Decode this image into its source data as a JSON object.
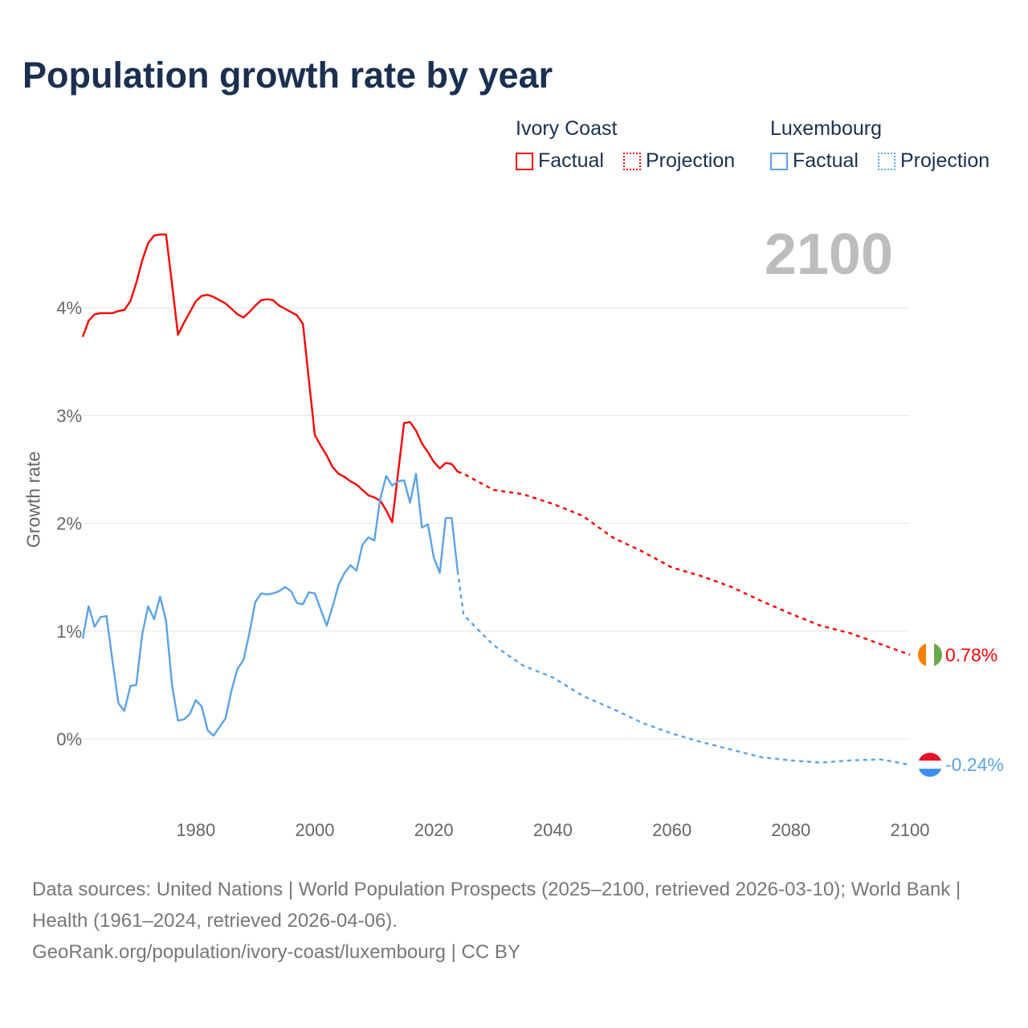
{
  "title": "Population growth rate by year",
  "legend": {
    "groups": [
      {
        "name": "Ivory Coast",
        "color": "#ff0000",
        "factual": "Factual",
        "projection": "Projection"
      },
      {
        "name": "Luxembourg",
        "color": "#5aa3e8",
        "factual": "Factual",
        "projection": "Projection"
      }
    ]
  },
  "current_year": "2100",
  "end_labels": {
    "ivory_coast": "0.78%",
    "luxembourg": "-0.24%"
  },
  "footer": {
    "line1": "Data sources: United Nations | World Population Prospects (2025–2100, retrieved 2026-03-10); World Bank | Health (1961–2024, retrieved 2026-04-06).",
    "line2": "GeoRank.org/population/ivory-coast/luxembourg | CC BY"
  },
  "chart_data": {
    "type": "line",
    "title": "Population growth rate by year",
    "xlabel": "",
    "ylabel": "Growth rate",
    "xlim": [
      1961,
      2100
    ],
    "ylim": [
      -0.6,
      4.9
    ],
    "x_ticks": [
      1980,
      2000,
      2020,
      2040,
      2060,
      2080,
      2100
    ],
    "y_ticks": [
      {
        "v": 0,
        "label": "0%"
      },
      {
        "v": 1,
        "label": "1%"
      },
      {
        "v": 2,
        "label": "2%"
      },
      {
        "v": 3,
        "label": "3%"
      },
      {
        "v": 4,
        "label": "4%"
      }
    ],
    "grid": true,
    "legend_position": "top-right",
    "series": [
      {
        "name": "Ivory Coast",
        "kind": "Factual",
        "color": "#ff0000",
        "dashed": false,
        "start_year": 1961,
        "values": [
          3.73,
          3.88,
          3.94,
          3.95,
          3.95,
          3.95,
          3.97,
          3.98,
          4.06,
          4.23,
          4.44,
          4.6,
          4.67,
          4.68,
          4.68,
          4.22,
          3.75,
          3.86,
          3.96,
          4.06,
          4.11,
          4.12,
          4.1,
          4.07,
          4.04,
          3.99,
          3.94,
          3.91,
          3.96,
          4.02,
          4.07,
          4.08,
          4.07,
          4.02,
          3.99,
          3.96,
          3.93,
          3.85,
          3.33,
          2.82,
          2.72,
          2.63,
          2.52,
          2.46,
          2.43,
          2.39,
          2.36,
          2.31,
          2.26,
          2.24,
          2.21,
          2.12,
          2.01,
          2.47,
          2.93,
          2.94,
          2.86,
          2.74,
          2.66,
          2.57,
          2.51,
          2.56,
          2.55,
          2.48
        ]
      },
      {
        "name": "Ivory Coast",
        "kind": "Projection",
        "color": "#ff0000",
        "dashed": true,
        "x": [
          2024,
          2025,
          2030,
          2035,
          2040,
          2045,
          2050,
          2055,
          2060,
          2065,
          2070,
          2075,
          2080,
          2085,
          2090,
          2095,
          2100
        ],
        "values": [
          2.48,
          2.46,
          2.31,
          2.27,
          2.18,
          2.07,
          1.87,
          1.74,
          1.59,
          1.51,
          1.41,
          1.28,
          1.16,
          1.05,
          0.98,
          0.88,
          0.78
        ]
      },
      {
        "name": "Luxembourg",
        "kind": "Factual",
        "color": "#5aa3e8",
        "dashed": false,
        "start_year": 1961,
        "values": [
          0.93,
          1.23,
          1.04,
          1.13,
          1.14,
          0.72,
          0.33,
          0.26,
          0.49,
          0.5,
          0.97,
          1.23,
          1.11,
          1.32,
          1.1,
          0.5,
          0.17,
          0.18,
          0.23,
          0.36,
          0.3,
          0.08,
          0.03,
          0.11,
          0.19,
          0.45,
          0.65,
          0.73,
          0.98,
          1.27,
          1.35,
          1.34,
          1.35,
          1.37,
          1.41,
          1.37,
          1.26,
          1.25,
          1.36,
          1.35,
          1.2,
          1.05,
          1.23,
          1.43,
          1.54,
          1.61,
          1.56,
          1.8,
          1.87,
          1.84,
          2.23,
          2.44,
          2.35,
          2.39,
          2.4,
          2.19,
          2.46,
          1.96,
          1.99,
          1.68,
          1.54,
          2.05,
          2.05,
          1.56
        ]
      },
      {
        "name": "Luxembourg",
        "kind": "Projection",
        "color": "#5aa3e8",
        "dashed": true,
        "x": [
          2024,
          2025,
          2030,
          2035,
          2040,
          2045,
          2050,
          2055,
          2060,
          2065,
          2070,
          2075,
          2080,
          2085,
          2090,
          2095,
          2100
        ],
        "values": [
          1.56,
          1.15,
          0.87,
          0.68,
          0.57,
          0.4,
          0.28,
          0.15,
          0.05,
          -0.03,
          -0.1,
          -0.17,
          -0.2,
          -0.22,
          -0.2,
          -0.19,
          -0.24
        ]
      }
    ]
  }
}
